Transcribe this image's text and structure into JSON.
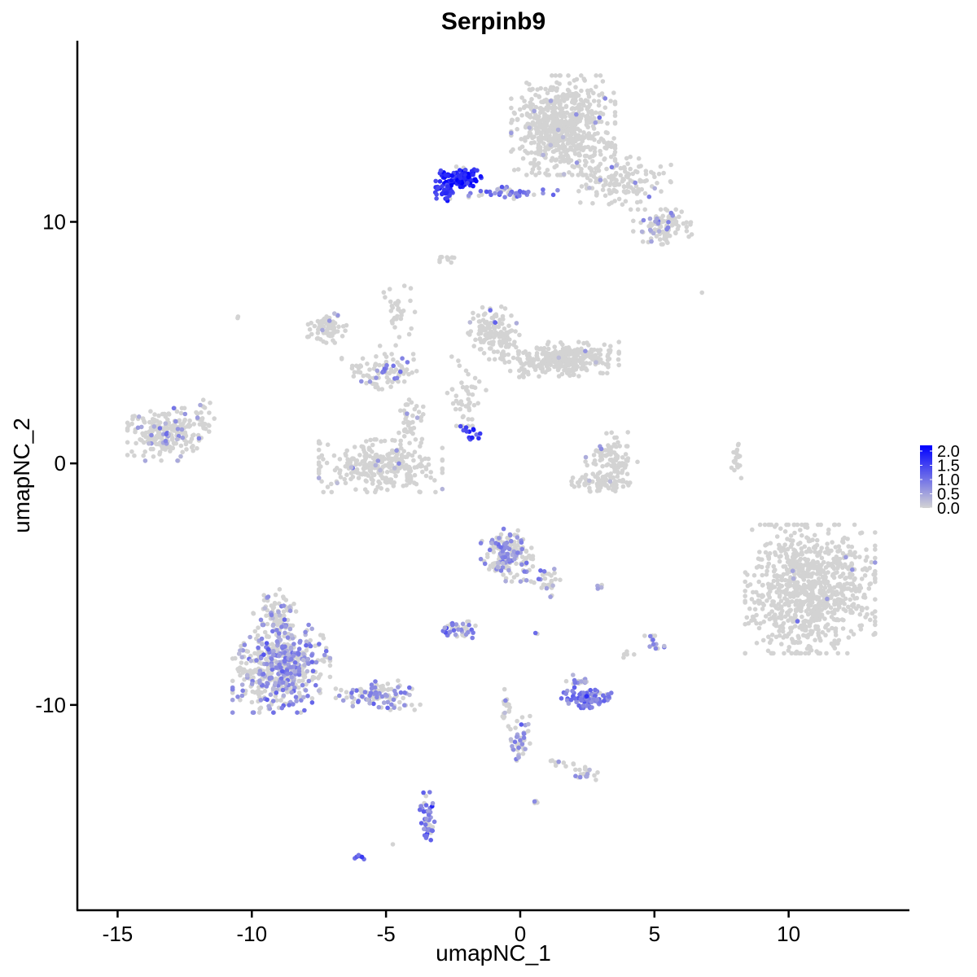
{
  "chart_data": {
    "type": "scatter",
    "title": "Serpinb9",
    "xlabel": "umapNC_1",
    "ylabel": "umapNC_2",
    "xlim": [
      -16.5,
      14.5
    ],
    "ylim": [
      -18.5,
      17.5
    ],
    "x_ticks": [
      -15,
      -10,
      -5,
      0,
      5,
      10
    ],
    "y_ticks": [
      -10,
      0,
      10
    ],
    "x_tick_labels": [
      "-15",
      "-10",
      "-5",
      "0",
      "5",
      "10"
    ],
    "y_tick_labels": [
      "-10",
      "0",
      "10"
    ],
    "grid": false,
    "legend": {
      "placement": "right",
      "type": "colorbar",
      "labels": [
        "2.0",
        "1.5",
        "1.0",
        "0.5",
        "0.0"
      ],
      "values": [
        2.0,
        1.5,
        1.0,
        0.5,
        0.0
      ],
      "range": [
        0,
        2.2
      ]
    },
    "colors": {
      "low": "#d3d3d3",
      "high": "#0000ff"
    },
    "clusters": [
      {
        "cx": 1.6,
        "cy": 14.0,
        "rx": 1.6,
        "ry": 1.7,
        "n": 650,
        "expr_frac": 0.02,
        "expr_mean": 0.5
      },
      {
        "cx": 3.8,
        "cy": 11.6,
        "rx": 1.5,
        "ry": 0.9,
        "n": 140,
        "expr_frac": 0.04,
        "expr_mean": 0.5
      },
      {
        "cx": 5.3,
        "cy": 9.8,
        "rx": 0.9,
        "ry": 0.6,
        "n": 110,
        "expr_frac": 0.12,
        "expr_mean": 0.6
      },
      {
        "cx": -2.3,
        "cy": 11.8,
        "rx": 0.7,
        "ry": 0.4,
        "n": 130,
        "expr_frac": 0.95,
        "expr_mean": 1.8
      },
      {
        "cx": -2.8,
        "cy": 11.2,
        "rx": 0.3,
        "ry": 0.3,
        "n": 30,
        "expr_frac": 0.9,
        "expr_mean": 1.6
      },
      {
        "cx": -0.3,
        "cy": 11.2,
        "rx": 1.4,
        "ry": 0.2,
        "n": 45,
        "expr_frac": 0.7,
        "expr_mean": 1.0
      },
      {
        "cx": -2.7,
        "cy": 8.5,
        "rx": 0.25,
        "ry": 0.15,
        "n": 10,
        "expr_frac": 0.0,
        "expr_mean": 0.0
      },
      {
        "cx": -7.2,
        "cy": 5.6,
        "rx": 0.6,
        "ry": 0.5,
        "n": 80,
        "expr_frac": 0.08,
        "expr_mean": 0.6
      },
      {
        "cx": -5.2,
        "cy": 3.8,
        "rx": 1.2,
        "ry": 0.6,
        "n": 90,
        "expr_frac": 0.18,
        "expr_mean": 0.8
      },
      {
        "cx": -4.5,
        "cy": 6.0,
        "rx": 0.6,
        "ry": 1.3,
        "n": 35,
        "expr_frac": 0.03,
        "expr_mean": 0.5
      },
      {
        "cx": -5.2,
        "cy": -0.1,
        "rx": 1.9,
        "ry": 0.9,
        "n": 300,
        "expr_frac": 0.04,
        "expr_mean": 0.5
      },
      {
        "cx": -4.1,
        "cy": 1.8,
        "rx": 0.4,
        "ry": 0.8,
        "n": 40,
        "expr_frac": 0.05,
        "expr_mean": 0.5
      },
      {
        "cx": -1.0,
        "cy": 5.4,
        "rx": 0.8,
        "ry": 0.9,
        "n": 140,
        "expr_frac": 0.05,
        "expr_mean": 0.5
      },
      {
        "cx": 1.5,
        "cy": 4.3,
        "rx": 1.8,
        "ry": 0.6,
        "n": 320,
        "expr_frac": 0.02,
        "expr_mean": 0.4
      },
      {
        "cx": -2.0,
        "cy": 3.0,
        "rx": 0.6,
        "ry": 1.2,
        "n": 45,
        "expr_frac": 0.0,
        "expr_mean": 0.0
      },
      {
        "cx": -1.8,
        "cy": 1.2,
        "rx": 0.35,
        "ry": 0.3,
        "n": 15,
        "expr_frac": 0.9,
        "expr_mean": 1.6
      },
      {
        "cx": 3.4,
        "cy": 0.2,
        "rx": 0.8,
        "ry": 0.9,
        "n": 100,
        "expr_frac": 0.02,
        "expr_mean": 0.5
      },
      {
        "cx": 3.0,
        "cy": -0.8,
        "rx": 0.9,
        "ry": 0.3,
        "n": 80,
        "expr_frac": 0.03,
        "expr_mean": 0.5
      },
      {
        "cx": 8.1,
        "cy": 0.2,
        "rx": 0.2,
        "ry": 0.7,
        "n": 20,
        "expr_frac": 0.0,
        "expr_mean": 0.0
      },
      {
        "cx": 10.8,
        "cy": -5.2,
        "rx": 2.0,
        "ry": 2.2,
        "n": 900,
        "expr_frac": 0.015,
        "expr_mean": 0.5
      },
      {
        "cx": -13.3,
        "cy": 1.2,
        "rx": 1.1,
        "ry": 0.9,
        "n": 220,
        "expr_frac": 0.15,
        "expr_mean": 0.6
      },
      {
        "cx": -11.8,
        "cy": 1.9,
        "rx": 0.4,
        "ry": 0.7,
        "n": 25,
        "expr_frac": 0.04,
        "expr_mean": 0.5
      },
      {
        "cx": -8.9,
        "cy": -8.5,
        "rx": 1.5,
        "ry": 1.5,
        "n": 550,
        "expr_frac": 0.45,
        "expr_mean": 0.7
      },
      {
        "cx": -9.1,
        "cy": -6.3,
        "rx": 0.7,
        "ry": 0.9,
        "n": 80,
        "expr_frac": 0.25,
        "expr_mean": 0.6
      },
      {
        "cx": -5.3,
        "cy": -9.6,
        "rx": 1.3,
        "ry": 0.5,
        "n": 110,
        "expr_frac": 0.35,
        "expr_mean": 0.7
      },
      {
        "cx": -3.5,
        "cy": -14.7,
        "rx": 0.25,
        "ry": 0.9,
        "n": 45,
        "expr_frac": 0.75,
        "expr_mean": 0.9
      },
      {
        "cx": -6.0,
        "cy": -16.3,
        "rx": 0.15,
        "ry": 0.1,
        "n": 6,
        "expr_frac": 1.0,
        "expr_mean": 1.4
      },
      {
        "cx": -0.5,
        "cy": -3.8,
        "rx": 0.8,
        "ry": 0.9,
        "n": 170,
        "expr_frac": 0.3,
        "expr_mean": 0.7
      },
      {
        "cx": 1.0,
        "cy": -4.8,
        "rx": 0.4,
        "ry": 0.6,
        "n": 30,
        "expr_frac": 0.3,
        "expr_mean": 0.7
      },
      {
        "cx": -2.3,
        "cy": -6.9,
        "rx": 0.6,
        "ry": 0.3,
        "n": 45,
        "expr_frac": 0.5,
        "expr_mean": 0.8
      },
      {
        "cx": 2.5,
        "cy": -9.7,
        "rx": 0.8,
        "ry": 0.35,
        "n": 90,
        "expr_frac": 0.9,
        "expr_mean": 0.9
      },
      {
        "cx": 2.2,
        "cy": -9.0,
        "rx": 0.4,
        "ry": 0.2,
        "n": 15,
        "expr_frac": 0.4,
        "expr_mean": 0.6
      },
      {
        "cx": 0.0,
        "cy": -11.5,
        "rx": 0.3,
        "ry": 0.9,
        "n": 45,
        "expr_frac": 0.45,
        "expr_mean": 0.6
      },
      {
        "cx": -0.6,
        "cy": -10.2,
        "rx": 0.2,
        "ry": 0.7,
        "n": 20,
        "expr_frac": 0.2,
        "expr_mean": 0.5
      },
      {
        "cx": 2.4,
        "cy": -12.8,
        "rx": 0.4,
        "ry": 0.25,
        "n": 20,
        "expr_frac": 0.25,
        "expr_mean": 0.6
      },
      {
        "cx": 1.5,
        "cy": -12.4,
        "rx": 0.4,
        "ry": 0.2,
        "n": 10,
        "expr_frac": 0.1,
        "expr_mean": 0.5
      },
      {
        "cx": 5.0,
        "cy": -7.5,
        "rx": 0.3,
        "ry": 0.3,
        "n": 15,
        "expr_frac": 0.25,
        "expr_mean": 0.6
      },
      {
        "cx": 3.0,
        "cy": -5.1,
        "rx": 0.15,
        "ry": 0.1,
        "n": 6,
        "expr_frac": 0.3,
        "expr_mean": 0.6
      },
      {
        "cx": 0.6,
        "cy": -14.0,
        "rx": 0.1,
        "ry": 0.1,
        "n": 4,
        "expr_frac": 0.2,
        "expr_mean": 0.5
      },
      {
        "cx": 4.0,
        "cy": -7.9,
        "rx": 0.2,
        "ry": 0.2,
        "n": 5,
        "expr_frac": 0.0,
        "expr_mean": 0.0
      },
      {
        "cx": -10.5,
        "cy": 6.1,
        "rx": 0.1,
        "ry": 0.1,
        "n": 2,
        "expr_frac": 0.0,
        "expr_mean": 0.0
      },
      {
        "cx": 6.8,
        "cy": 7.1,
        "rx": 0.05,
        "ry": 0.05,
        "n": 1,
        "expr_frac": 0.0,
        "expr_mean": 0.0
      },
      {
        "cx": -4.8,
        "cy": -15.8,
        "rx": 0.05,
        "ry": 0.05,
        "n": 1,
        "expr_frac": 0.0,
        "expr_mean": 0.0
      },
      {
        "cx": 0.6,
        "cy": -7.0,
        "rx": 0.1,
        "ry": 0.1,
        "n": 2,
        "expr_frac": 0.5,
        "expr_mean": 0.8
      }
    ]
  }
}
